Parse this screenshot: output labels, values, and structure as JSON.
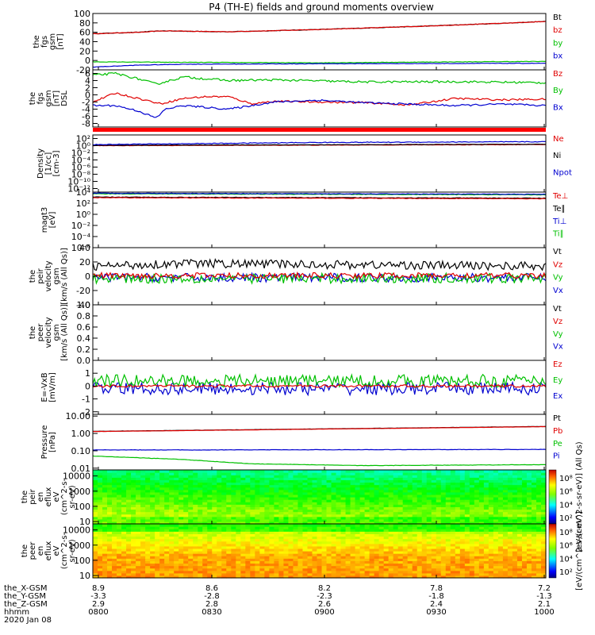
{
  "title": "P4 (TH-E) fields and ground moments overview",
  "colors": {
    "black": "#000000",
    "red": "#e00000",
    "green": "#00c000",
    "blue": "#0000d0"
  },
  "chart_data": [
    {
      "type": "line",
      "ylabel": [
        "the",
        "fgs",
        "gsm",
        "[nT]"
      ],
      "ylim": [
        -20,
        100
      ],
      "yticks": [
        "100",
        "80",
        "60",
        "40",
        "20",
        "0",
        "-20"
      ],
      "yticks_v": [
        100,
        80,
        60,
        40,
        20,
        0,
        -20
      ],
      "legend": [
        {
          "name": "Bt",
          "color": "black"
        },
        {
          "name": "bz",
          "color": "red"
        },
        {
          "name": "by",
          "color": "green"
        },
        {
          "name": "bx",
          "color": "blue"
        }
      ],
      "series": [
        {
          "name": "Bt",
          "color": "black",
          "x": [
            0,
            0.1,
            0.15,
            0.3,
            0.5,
            0.7,
            0.9,
            1
          ],
          "y": [
            57,
            60,
            63,
            61,
            66,
            72,
            79,
            83
          ],
          "noise": 0.6
        },
        {
          "name": "bz",
          "color": "red",
          "x": [
            0,
            0.1,
            0.15,
            0.3,
            0.5,
            0.7,
            0.9,
            1
          ],
          "y": [
            57,
            60,
            63,
            61,
            66,
            72,
            79,
            83
          ],
          "noise": 0.6
        },
        {
          "name": "by",
          "color": "green",
          "x": [
            0,
            0.2,
            0.5,
            0.8,
            1
          ],
          "y": [
            -3,
            -4,
            -5,
            -3,
            -2
          ],
          "noise": 0.5
        },
        {
          "name": "bx",
          "color": "blue",
          "x": [
            0,
            0.1,
            0.2,
            0.5,
            1
          ],
          "y": [
            -14,
            -10,
            -8,
            -7,
            -6
          ],
          "noise": 0.5
        }
      ]
    },
    {
      "type": "line",
      "ylabel": [
        "the",
        "fgs",
        "gsm",
        "[nT]",
        "DSL"
      ],
      "ylim": [
        -9,
        7
      ],
      "yticks": [
        "6",
        "4",
        "2",
        "0",
        "-2",
        "-4",
        "-6",
        "-8"
      ],
      "yticks_v": [
        6,
        4,
        2,
        0,
        -2,
        -4,
        -6,
        -8
      ],
      "legend": [
        {
          "name": "Bz",
          "color": "red"
        },
        {
          "name": "By",
          "color": "green"
        },
        {
          "name": "Bx",
          "color": "blue"
        }
      ],
      "series": [
        {
          "name": "By",
          "color": "green",
          "x": [
            0,
            0.05,
            0.1,
            0.14,
            0.2,
            0.3,
            0.4,
            0.6,
            0.8,
            1
          ],
          "y": [
            5.5,
            6,
            4.5,
            3,
            5,
            4,
            4.2,
            3.6,
            3.7,
            3.4
          ],
          "noise": 0.3
        },
        {
          "name": "Bz",
          "color": "red",
          "x": [
            0,
            0.05,
            0.1,
            0.15,
            0.2,
            0.25,
            0.3,
            0.35,
            0.4,
            0.5,
            0.6,
            0.7,
            0.8,
            0.9,
            1
          ],
          "y": [
            -2,
            0.5,
            -1,
            -2.5,
            -1,
            -0.5,
            -0.5,
            -2.5,
            -1.8,
            -2,
            -2.2,
            -2.8,
            -1,
            -1.4,
            -1.2
          ],
          "noise": 0.25
        },
        {
          "name": "Bx",
          "color": "blue",
          "x": [
            0,
            0.05,
            0.1,
            0.14,
            0.16,
            0.2,
            0.3,
            0.4,
            0.5,
            0.6,
            0.7,
            0.8,
            0.9,
            1
          ],
          "y": [
            -3,
            -3,
            -4.5,
            -6.5,
            -4,
            -3,
            -4,
            -2,
            -1.5,
            -2.2,
            -2.6,
            -3,
            -2.6,
            -3
          ],
          "noise": 0.25
        }
      ]
    },
    {
      "type": "line",
      "ylabel": [
        "Density",
        "[1/cc]",
        "[cm-3]"
      ],
      "ylim": [
        -13,
        3
      ],
      "log": true,
      "yticks": [
        "10²",
        "10⁰",
        "10⁻²",
        "10⁻⁴",
        "10⁻⁶",
        "10⁻⁸",
        "10⁻¹⁰",
        "10⁻¹²"
      ],
      "yticks_v": [
        2,
        0,
        -2,
        -4,
        -6,
        -8,
        -10,
        -12
      ],
      "legend": [
        {
          "name": "Ne",
          "color": "red"
        },
        {
          "name": "Ni",
          "color": "black"
        },
        {
          "name": "Npot",
          "color": "blue"
        }
      ],
      "series": [
        {
          "name": "Ne",
          "color": "red",
          "x": [
            0,
            1
          ],
          "y": [
            0,
            0.3
          ],
          "noise": 0.05
        },
        {
          "name": "Ni",
          "color": "black",
          "x": [
            0,
            1
          ],
          "y": [
            0.1,
            0.4
          ],
          "noise": 0.05
        },
        {
          "name": "Npot",
          "color": "blue",
          "x": [
            0,
            0.5,
            1
          ],
          "y": [
            0.3,
            0.9,
            1.1
          ],
          "noise": 0.1
        }
      ]
    },
    {
      "type": "line",
      "ylabel": [
        "magt3",
        "[eV]"
      ],
      "ylim": [
        -6,
        4
      ],
      "log": true,
      "yticks": [
        "10⁴",
        "10²",
        "10⁰",
        "10⁻²",
        "10⁻⁴",
        "10⁻⁶"
      ],
      "yticks_v": [
        4,
        2,
        0,
        -2,
        -4,
        -6
      ],
      "legend": [
        {
          "name": "Te⊥",
          "color": "red"
        },
        {
          "name": "Te∥",
          "color": "black"
        },
        {
          "name": "Ti⊥",
          "color": "blue"
        },
        {
          "name": "Ti∥",
          "color": "green"
        }
      ],
      "series": [
        {
          "name": "Ti∥",
          "color": "green",
          "x": [
            0,
            1
          ],
          "y": [
            3.7,
            3.5
          ],
          "noise": 0.05
        },
        {
          "name": "Ti⊥",
          "color": "blue",
          "x": [
            0,
            1
          ],
          "y": [
            3.8,
            3.6
          ],
          "noise": 0.05
        },
        {
          "name": "Te∥",
          "color": "black",
          "x": [
            0,
            1
          ],
          "y": [
            3.1,
            2.9
          ],
          "noise": 0.05
        },
        {
          "name": "Te⊥",
          "color": "red",
          "x": [
            0,
            1
          ],
          "y": [
            3.0,
            2.8
          ],
          "noise": 0.05
        }
      ]
    },
    {
      "type": "line",
      "ylabel": [
        "the",
        "peir",
        "velocity",
        "gsm",
        "[km/s (All Qs)]"
      ],
      "ylim": [
        -40,
        40
      ],
      "yticks": [
        "40",
        "20",
        "0",
        "-20",
        "-40"
      ],
      "yticks_v": [
        40,
        20,
        0,
        -20,
        -40
      ],
      "legend": [
        {
          "name": "Vt",
          "color": "black"
        },
        {
          "name": "Vz",
          "color": "red"
        },
        {
          "name": "Vy",
          "color": "green"
        },
        {
          "name": "Vx",
          "color": "blue"
        }
      ],
      "series": [
        {
          "name": "Vx",
          "color": "blue",
          "x": [
            0,
            1
          ],
          "y": [
            -2,
            -2
          ],
          "noise": 6
        },
        {
          "name": "Vy",
          "color": "green",
          "x": [
            0,
            1
          ],
          "y": [
            -3,
            -3
          ],
          "noise": 7
        },
        {
          "name": "Vt",
          "color": "black",
          "x": [
            0,
            0.2,
            1
          ],
          "y": [
            14,
            18,
            14
          ],
          "noise": 6
        },
        {
          "name": "Vz",
          "color": "red",
          "x": [
            0,
            1
          ],
          "y": [
            1,
            1
          ],
          "noise": 4
        }
      ]
    },
    {
      "type": "line",
      "ylabel": [
        "the",
        "peer",
        "velocity",
        "gsm",
        "[km/s (All Qs)]"
      ],
      "ylim": [
        0,
        1
      ],
      "yticks": [
        "1.0",
        "0.8",
        "0.6",
        "0.4",
        "0.2",
        "0.0"
      ],
      "yticks_v": [
        1,
        0.8,
        0.6,
        0.4,
        0.2,
        0
      ],
      "legend": [
        {
          "name": "Vt",
          "color": "black"
        },
        {
          "name": "Vz",
          "color": "red"
        },
        {
          "name": "Vy",
          "color": "green"
        },
        {
          "name": "Vx",
          "color": "blue"
        }
      ],
      "series": []
    },
    {
      "type": "line",
      "ylabel": [
        "E=-VxB",
        "[mV/m]"
      ],
      "ylim": [
        -2.2,
        2
      ],
      "yticks": [
        "1",
        "0",
        "-1",
        "-2"
      ],
      "yticks_v": [
        1,
        0,
        -1,
        -2
      ],
      "legend": [
        {
          "name": "Ez",
          "color": "red"
        },
        {
          "name": "Ey",
          "color": "green"
        },
        {
          "name": "Ex",
          "color": "blue"
        }
      ],
      "series": [
        {
          "name": "Ex",
          "color": "blue",
          "x": [
            0,
            1
          ],
          "y": [
            -0.2,
            -0.2
          ],
          "noise": 0.5
        },
        {
          "name": "Ey",
          "color": "green",
          "x": [
            0,
            1
          ],
          "y": [
            0.4,
            0.4
          ],
          "noise": 0.5
        },
        {
          "name": "Ez",
          "color": "red",
          "x": [
            0,
            1
          ],
          "y": [
            0,
            0
          ],
          "noise": 0.1
        }
      ]
    },
    {
      "type": "line",
      "ylabel": [
        "Pressure",
        "[nPa]"
      ],
      "ylim": [
        -2.1,
        1.1
      ],
      "log": true,
      "yticks": [
        "10.00",
        "1.00",
        "0.10",
        "0.01"
      ],
      "yticks_v": [
        1,
        0,
        -1,
        -2
      ],
      "legend": [
        {
          "name": "Pt",
          "color": "black"
        },
        {
          "name": "Pb",
          "color": "red"
        },
        {
          "name": "Pe",
          "color": "green"
        },
        {
          "name": "Pi",
          "color": "blue"
        }
      ],
      "series": [
        {
          "name": "Pi",
          "color": "blue",
          "x": [
            0,
            0.25,
            1
          ],
          "y": [
            -0.95,
            -0.95,
            -0.92
          ],
          "noise": 0.01
        },
        {
          "name": "Pe",
          "color": "green",
          "x": [
            0,
            0.2,
            0.35,
            0.6,
            1
          ],
          "y": [
            -1.3,
            -1.5,
            -1.75,
            -1.85,
            -1.8
          ],
          "noise": 0.01
        },
        {
          "name": "Pt",
          "color": "black",
          "x": [
            0,
            0.5,
            1
          ],
          "y": [
            0.12,
            0.26,
            0.4
          ],
          "noise": 0.006
        },
        {
          "name": "Pb",
          "color": "red",
          "x": [
            0,
            0.5,
            1
          ],
          "y": [
            0.11,
            0.25,
            0.39
          ],
          "noise": 0.006
        }
      ]
    },
    {
      "type": "heatmap",
      "ylabel": [
        "the",
        "peir",
        "en",
        "eflux",
        "eV",
        "(cm^2-s-",
        "sr-eV)"
      ],
      "ylim": [
        7,
        25000
      ],
      "log": true,
      "yticks": [
        "10000",
        "1000",
        "100",
        "10"
      ],
      "yticks_v": [
        10000,
        1000,
        100,
        10
      ],
      "colorbar": {
        "ticks": [
          "10⁸",
          "10⁶",
          "10⁴",
          "10²"
        ],
        "label": "[eV/(cm^2-s-sr-eV)] (All Qs)"
      }
    },
    {
      "type": "heatmap",
      "ylabel": [
        "the",
        "peer",
        "en",
        "eflux",
        "eV",
        "(cm^2-s-",
        "sr-eV)"
      ],
      "ylim": [
        7,
        25000
      ],
      "log": true,
      "yticks": [
        "10000",
        "1000",
        "100",
        "10"
      ],
      "yticks_v": [
        10000,
        1000,
        100,
        10
      ],
      "colorbar": {
        "ticks": [
          "10⁸",
          "10⁶",
          "10⁴",
          "10²"
        ],
        "label": "[eV/(cm^2-s-sr-eV)]"
      }
    }
  ],
  "xaxis": {
    "rows": [
      {
        "label": "the_X-GSM",
        "values": [
          "8.9",
          "8.6",
          "8.2",
          "7.8",
          "7.2"
        ]
      },
      {
        "label": "the_Y-GSM",
        "values": [
          "-3.3",
          "-2.8",
          "-2.3",
          "-1.8",
          "-1.3"
        ]
      },
      {
        "label": "the_Z-GSM",
        "values": [
          "2.9",
          "2.8",
          "2.6",
          "2.4",
          "2.1"
        ]
      },
      {
        "label": "hhmm",
        "values": [
          "0800",
          "0830",
          "0900",
          "0930",
          "1000"
        ]
      }
    ],
    "date": "2020 Jan 08"
  }
}
